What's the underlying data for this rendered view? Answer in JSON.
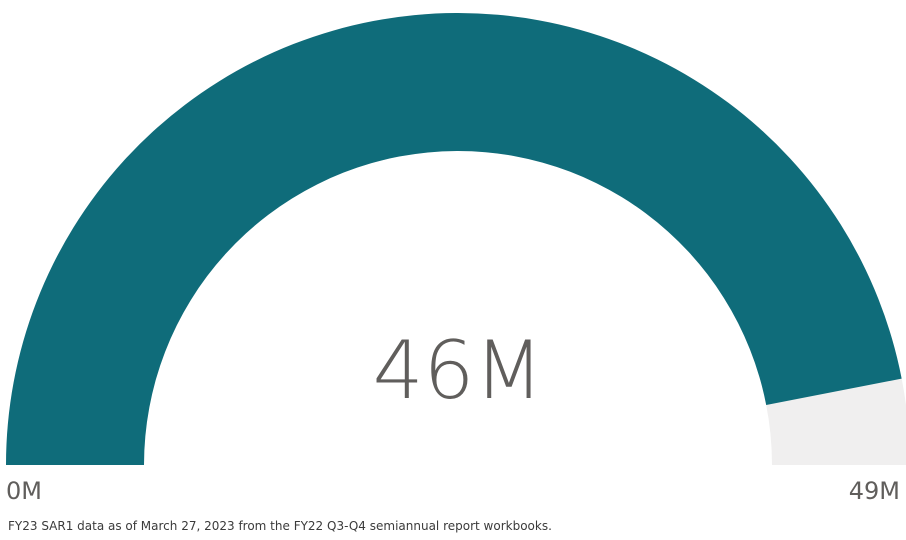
{
  "chart_data": {
    "type": "gauge",
    "value": 46,
    "min": 0,
    "max": 49,
    "value_label": "46M",
    "min_label": "0M",
    "max_label": "49M",
    "fill_color": "#0f6c7a",
    "track_color": "#f0efef"
  },
  "footnote": "FY23 SAR1 data as of March 27, 2023 from the FY22 Q3-Q4 semiannual report workbooks."
}
